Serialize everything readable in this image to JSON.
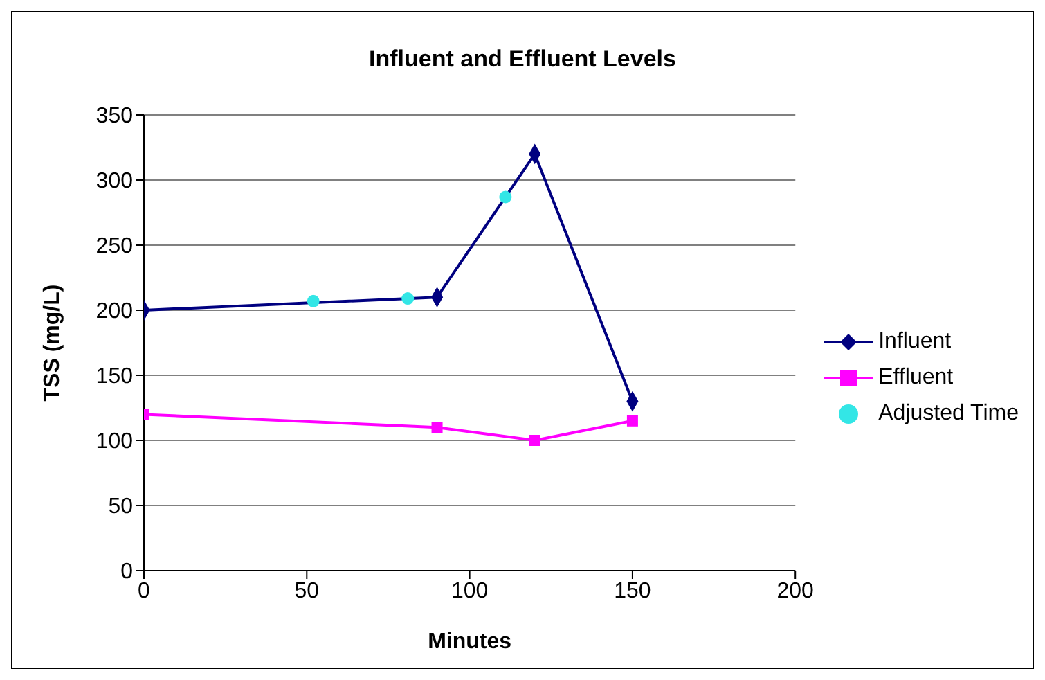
{
  "chart_data": {
    "type": "line",
    "title": "Influent and Effluent Levels",
    "xlabel": "Minutes",
    "ylabel": "TSS (mg/L)",
    "xlim": [
      0,
      200
    ],
    "xticks": [
      0,
      50,
      100,
      150,
      200
    ],
    "ylim": [
      0,
      350
    ],
    "yticks": [
      0,
      50,
      100,
      150,
      200,
      250,
      300,
      350
    ],
    "grid": "y",
    "legend": "right",
    "series": [
      {
        "name": "Influent",
        "type": "line",
        "marker": "diamond",
        "color": "#000080",
        "x": [
          0,
          90,
          120,
          150
        ],
        "values": [
          200,
          210,
          320,
          130
        ]
      },
      {
        "name": "Effluent",
        "type": "line",
        "marker": "square",
        "color": "#ff00ff",
        "x": [
          0,
          90,
          120,
          150
        ],
        "values": [
          120,
          110,
          100,
          115
        ]
      },
      {
        "name": "Adjusted Time",
        "type": "scatter",
        "marker": "circle",
        "color": "#33e6e6",
        "x": [
          52,
          81,
          111
        ],
        "values": [
          207,
          209,
          287
        ]
      }
    ]
  }
}
